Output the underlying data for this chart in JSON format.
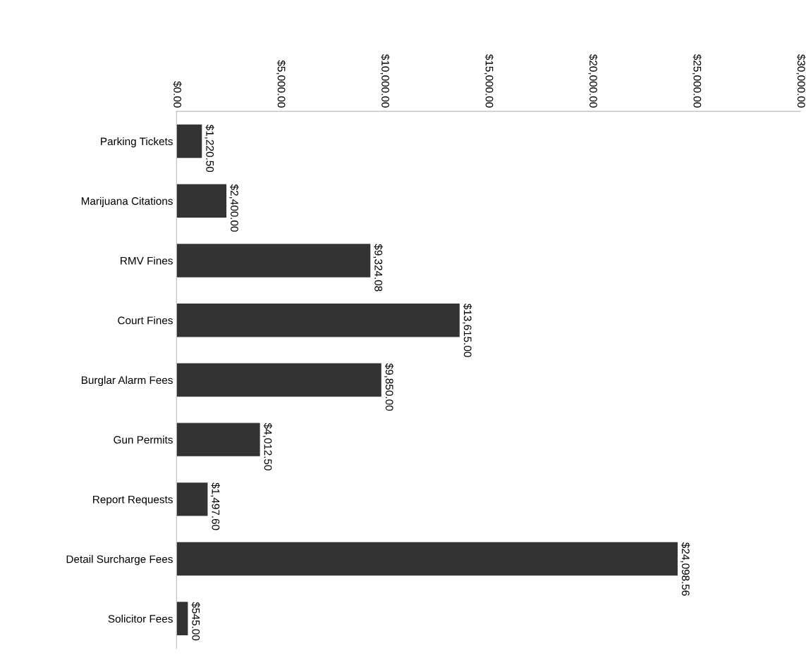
{
  "chart_data": {
    "type": "bar",
    "orientation": "horizontal",
    "categories": [
      "Parking Tickets",
      "Marijuana Citations",
      "RMV Fines",
      "Court Fines",
      "Burglar Alarm Fees",
      "Gun Permits",
      "Report Requests",
      "Detail Surcharge Fees",
      "Solicitor Fees"
    ],
    "values": [
      1220.5,
      2400.0,
      9324.08,
      13615.0,
      9850.0,
      4012.5,
      1497.6,
      24098.56,
      545.0
    ],
    "value_labels": [
      "$1,220.50",
      "$2,400.00",
      "$9,324.08",
      "$13,615.00",
      "$9,850.00",
      "$4,012.50",
      "$1,497.60",
      "$24,098.56",
      "$545.00"
    ],
    "color": "#333333",
    "xlim": [
      0,
      30000
    ],
    "xticks": [
      {
        "value": 0,
        "label": "$0.00"
      },
      {
        "value": 5000,
        "label": "$5,000.00"
      },
      {
        "value": 10000,
        "label": "$10,000.00"
      },
      {
        "value": 15000,
        "label": "$15,000.00"
      },
      {
        "value": 20000,
        "label": "$20,000.00"
      },
      {
        "value": 25000,
        "label": "$25,000.00"
      },
      {
        "value": 30000,
        "label": "$30,000.00"
      }
    ],
    "grid": false,
    "legend": false
  }
}
